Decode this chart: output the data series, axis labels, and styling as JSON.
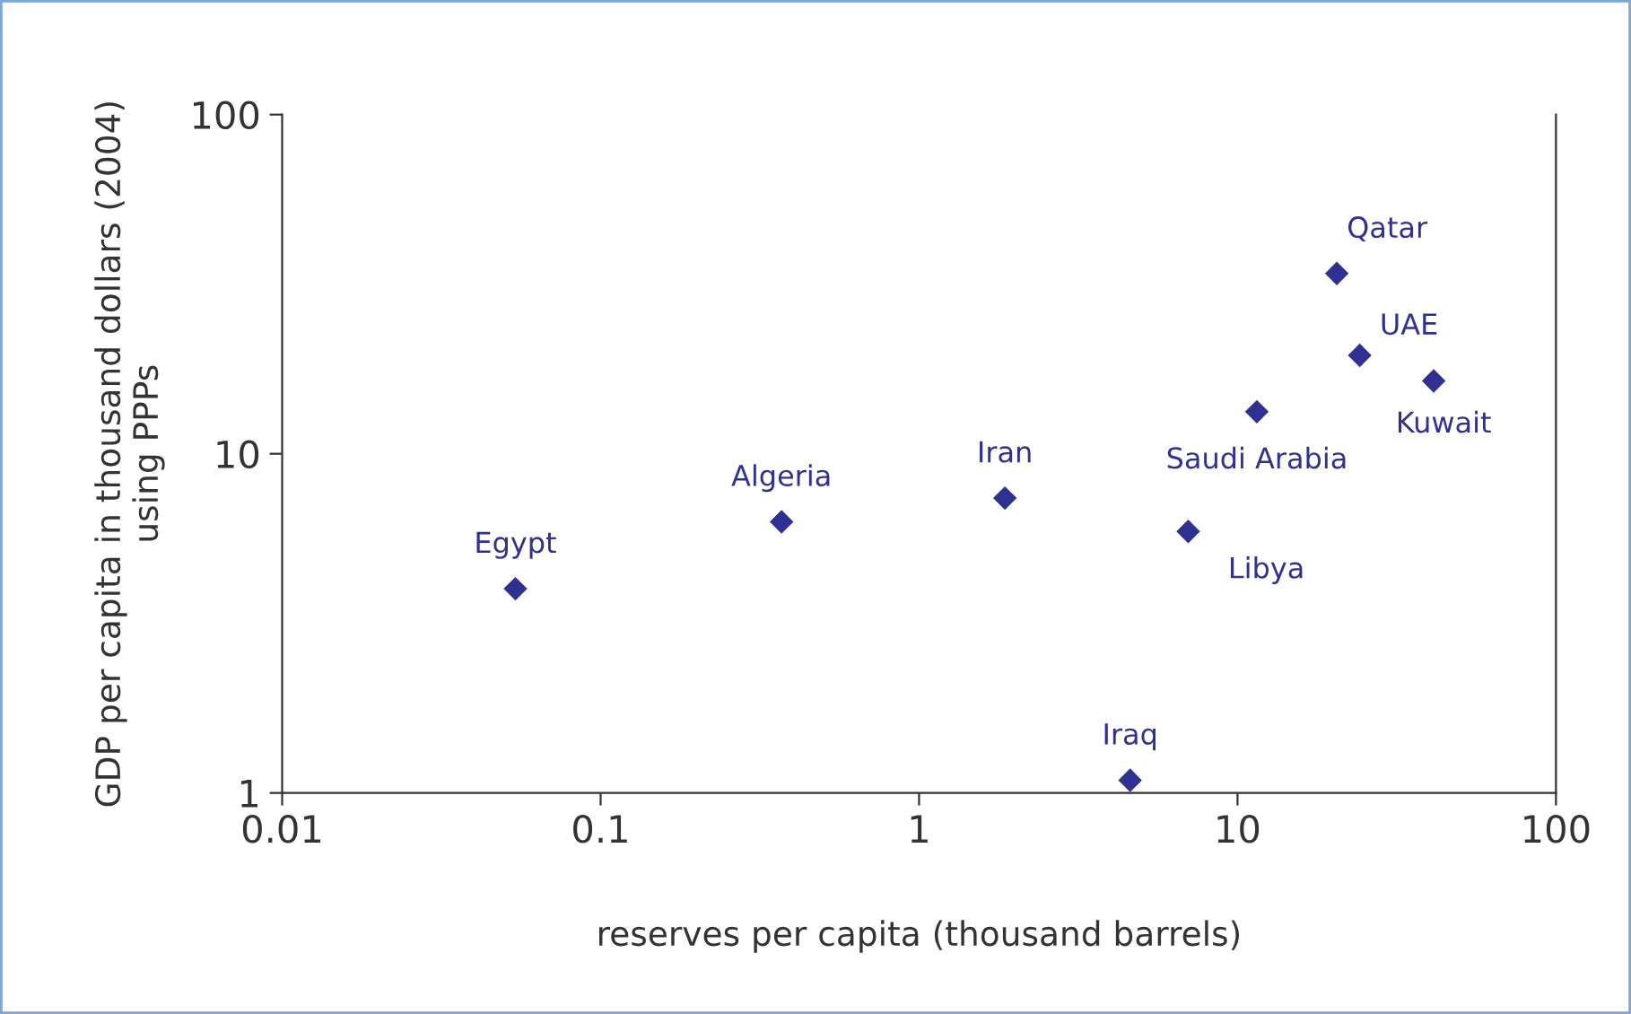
{
  "chart_data": {
    "type": "scatter",
    "xlabel": "reserves per capita (thousand barrels)",
    "ylabel": "GDP per capita in thousand dollars (2004)\nusing PPPs",
    "log": "xy",
    "xlim": [
      0.01,
      100
    ],
    "ylim": [
      1,
      100
    ],
    "xticks": [
      0.01,
      0.1,
      1,
      10,
      100
    ],
    "yticks": [
      1,
      10,
      100
    ],
    "grid": false,
    "legend": false,
    "marker": "diamond",
    "series": [
      {
        "color": "#2e3192",
        "x": [
          0.054,
          0.37,
          1.86,
          4.6,
          7.0,
          11.5,
          20.5,
          24.2,
          41.3
        ],
        "values": [
          4.0,
          6.3,
          7.4,
          1.09,
          5.9,
          13.3,
          34,
          19.5,
          16.4
        ]
      }
    ],
    "annotations": [
      {
        "text": "Egypt",
        "x": 0.054,
        "y": 4.0
      },
      {
        "text": "Algeria",
        "x": 0.37,
        "y": 6.3
      },
      {
        "text": "Iran",
        "x": 1.86,
        "y": 7.4
      },
      {
        "text": "Iraq",
        "x": 4.6,
        "y": 1.09
      },
      {
        "text": "Libya",
        "x": 7.0,
        "y": 5.9
      },
      {
        "text": "Saudi Arabia",
        "x": 11.5,
        "y": 13.3
      },
      {
        "text": "Qatar",
        "x": 20.5,
        "y": 34
      },
      {
        "text": "UAE",
        "x": 24.2,
        "y": 19.5
      },
      {
        "text": "Kuwait",
        "x": 41.3,
        "y": 16.4
      }
    ]
  }
}
